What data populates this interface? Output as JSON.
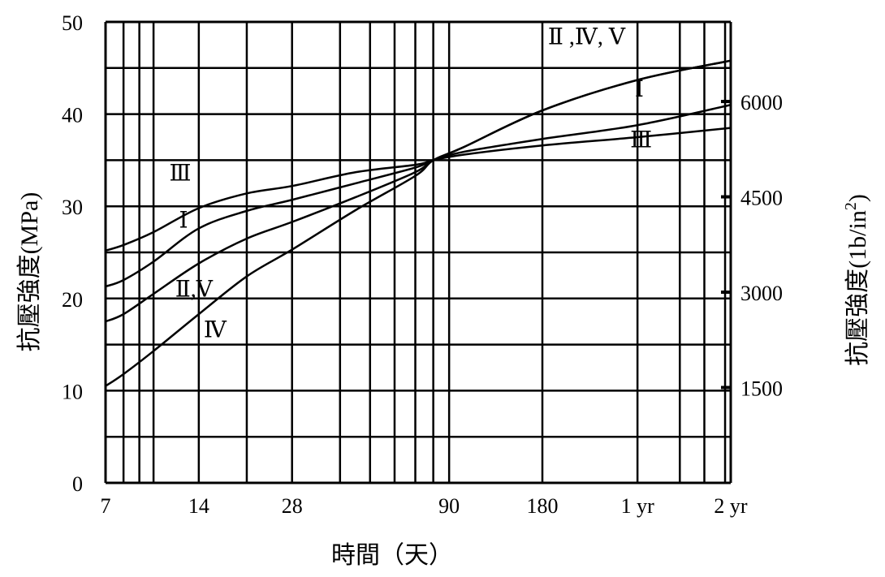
{
  "chart_data": {
    "type": "line",
    "x_scale": "log",
    "x_ticks": [
      {
        "value": 7,
        "label": "7"
      },
      {
        "value": 14,
        "label": "14"
      },
      {
        "value": 28,
        "label": "28"
      },
      {
        "value": 90,
        "label": "90"
      },
      {
        "value": 180,
        "label": "180"
      },
      {
        "value": 365,
        "label": "1 yr"
      },
      {
        "value": 730,
        "label": "2 yr"
      }
    ],
    "xlim": [
      7,
      730
    ],
    "xlabel": "時間（天）",
    "ylabel": "抗壓強度(MPa)",
    "ylim": [
      0,
      50
    ],
    "y_ticks": [
      {
        "value": 0,
        "label": "0"
      },
      {
        "value": 10,
        "label": "10"
      },
      {
        "value": 20,
        "label": "20"
      },
      {
        "value": 30,
        "label": "30"
      },
      {
        "value": 40,
        "label": "40"
      },
      {
        "value": 50,
        "label": "50"
      }
    ],
    "y2label": "抗壓強度(1b/in",
    "y2label_sup": "2",
    "y2label_close": ")",
    "y2_ticks": [
      {
        "value": 1500,
        "label": "1500"
      },
      {
        "value": 3000,
        "label": "3000"
      },
      {
        "value": 4500,
        "label": "4500"
      },
      {
        "value": 6000,
        "label": "6000"
      }
    ],
    "y2_per_y1": 145.04,
    "grid": true,
    "series": [
      {
        "name": "III",
        "points": [
          [
            7,
            25.2
          ],
          [
            8,
            25.8
          ],
          [
            10,
            27.2
          ],
          [
            14,
            29.8
          ],
          [
            20,
            31.4
          ],
          [
            28,
            32.2
          ],
          [
            45,
            33.7
          ],
          [
            70,
            34.5
          ],
          [
            80,
            35.0
          ],
          [
            100,
            35.6
          ],
          [
            180,
            36.6
          ],
          [
            365,
            37.5
          ],
          [
            730,
            38.5
          ]
        ]
      },
      {
        "name": "I",
        "points": [
          [
            7,
            21.3
          ],
          [
            8,
            22.0
          ],
          [
            10,
            24.0
          ],
          [
            14,
            27.6
          ],
          [
            20,
            29.5
          ],
          [
            28,
            30.7
          ],
          [
            45,
            32.5
          ],
          [
            70,
            34.2
          ],
          [
            80,
            35.0
          ],
          [
            100,
            35.9
          ],
          [
            180,
            37.3
          ],
          [
            365,
            38.8
          ],
          [
            730,
            41.0
          ]
        ]
      },
      {
        "name": "II,V",
        "points": [
          [
            7,
            17.5
          ],
          [
            8,
            18.3
          ],
          [
            10,
            20.5
          ],
          [
            14,
            23.8
          ],
          [
            20,
            26.5
          ],
          [
            28,
            28.3
          ],
          [
            45,
            31.0
          ],
          [
            70,
            33.7
          ],
          [
            80,
            35.0
          ],
          [
            100,
            36.4
          ],
          [
            180,
            40.4
          ],
          [
            365,
            43.7
          ],
          [
            730,
            45.8
          ]
        ]
      },
      {
        "name": "IV",
        "points": [
          [
            7,
            10.5
          ],
          [
            8,
            11.8
          ],
          [
            10,
            14.3
          ],
          [
            14,
            18.3
          ],
          [
            20,
            22.4
          ],
          [
            28,
            25.3
          ],
          [
            45,
            29.6
          ],
          [
            70,
            33.3
          ],
          [
            80,
            35.0
          ],
          [
            100,
            36.4
          ],
          [
            180,
            40.4
          ],
          [
            365,
            43.7
          ],
          [
            730,
            45.8
          ]
        ]
      }
    ],
    "annotations": [
      {
        "text": "Ⅱ ,Ⅳ, Ⅴ",
        "x": 250,
        "y": 47.6
      },
      {
        "text": "Ⅰ",
        "x": 370,
        "y": 41.9
      },
      {
        "text": "Ⅲ",
        "x": 375,
        "y": 36.4
      },
      {
        "text": "Ⅲ",
        "x": 12.2,
        "y": 32.8
      },
      {
        "text": "Ⅰ",
        "x": 12.5,
        "y": 27.7
      },
      {
        "text": "Ⅱ,Ⅴ",
        "x": 13.5,
        "y": 20.2
      },
      {
        "text": "Ⅳ",
        "x": 15.8,
        "y": 15.8
      }
    ]
  }
}
